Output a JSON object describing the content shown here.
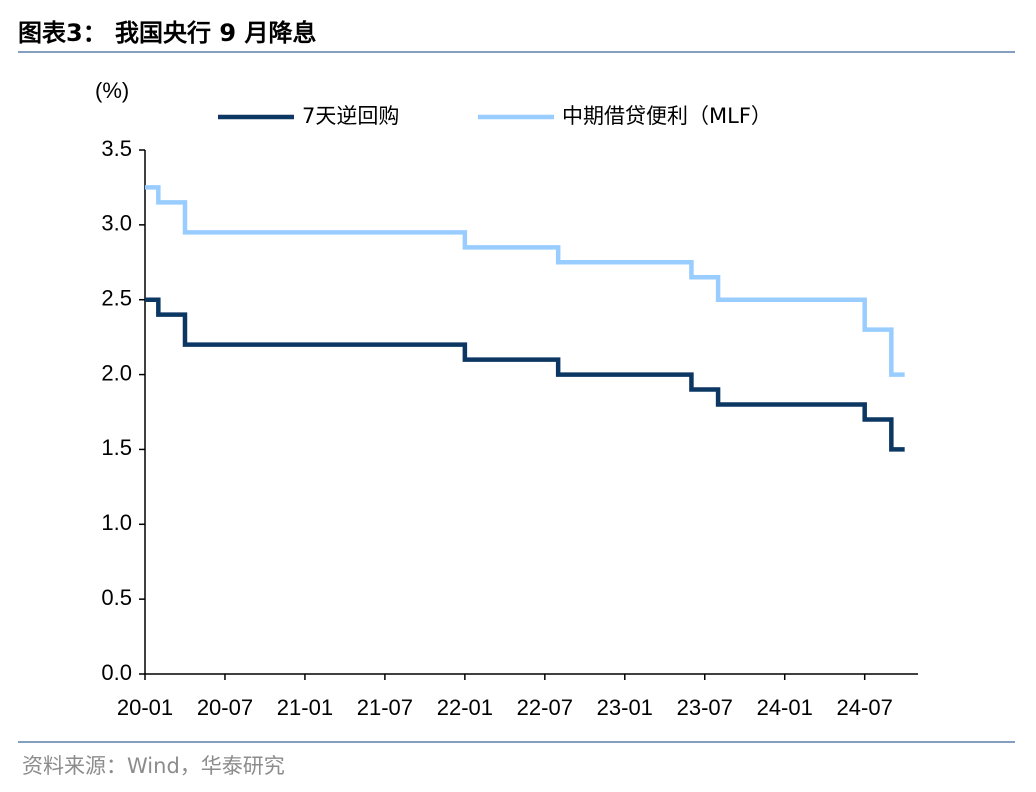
{
  "chart_data": {
    "type": "step",
    "title": "图表3： 我国央行 9 月降息",
    "y_label": "(%)",
    "source": "资料来源：Wind，华泰研究",
    "x": [
      "2020-01",
      "2020-02",
      "2020-04",
      "2022-01",
      "2022-08",
      "2023-06",
      "2023-08",
      "2024-07",
      "2024-09",
      "2024-10"
    ],
    "series": [
      {
        "name": "7天逆回购",
        "color": "#0c3763",
        "values": [
          2.5,
          2.4,
          2.2,
          2.1,
          2.0,
          1.9,
          1.8,
          1.7,
          1.5,
          1.5
        ]
      },
      {
        "name": "中期借贷便利（MLF）",
        "color": "#99cdff",
        "values": [
          3.25,
          3.15,
          2.95,
          2.85,
          2.75,
          2.65,
          2.5,
          2.3,
          2.0,
          2.0
        ]
      }
    ],
    "xlim": [
      "2020-01",
      "2024-11"
    ],
    "xticks": [
      {
        "value": "2020-01",
        "label": "20-01"
      },
      {
        "value": "2020-07",
        "label": "20-07"
      },
      {
        "value": "2021-01",
        "label": "21-01"
      },
      {
        "value": "2021-07",
        "label": "21-07"
      },
      {
        "value": "2022-01",
        "label": "22-01"
      },
      {
        "value": "2022-07",
        "label": "22-07"
      },
      {
        "value": "2023-01",
        "label": "23-01"
      },
      {
        "value": "2023-07",
        "label": "23-07"
      },
      {
        "value": "2024-01",
        "label": "24-01"
      },
      {
        "value": "2024-07",
        "label": "24-07"
      }
    ],
    "ylim": [
      0,
      3.5
    ],
    "yticks": [
      {
        "value": 0,
        "label": "0.0"
      },
      0.5,
      {
        "value": 1,
        "label": "1.0"
      },
      1.5,
      {
        "value": 2,
        "label": "2.0"
      },
      2.5,
      {
        "value": 3,
        "label": "3.0"
      },
      3.5
    ],
    "legend": "top",
    "grid": false
  }
}
